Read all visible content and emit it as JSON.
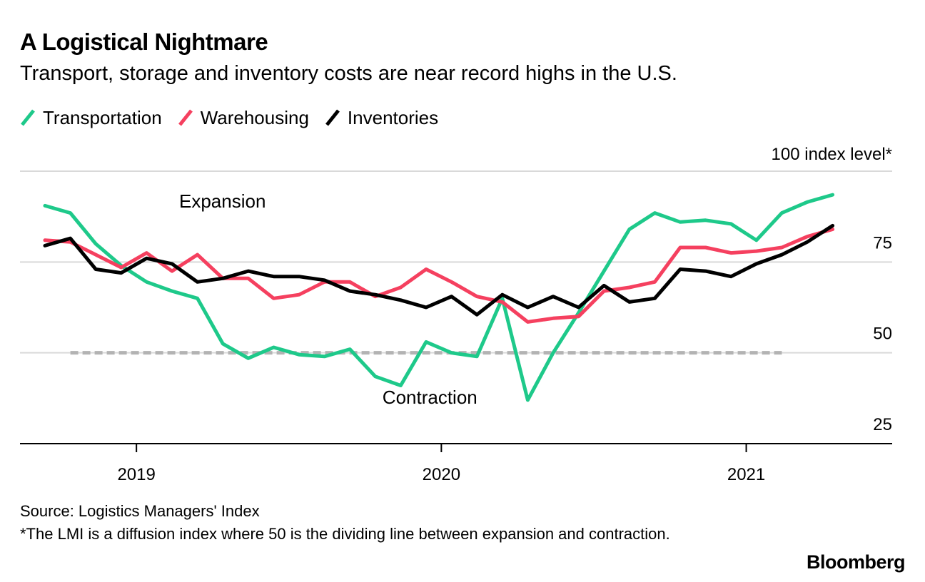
{
  "header": {
    "title": "A Logistical Nightmare",
    "subtitle": "Transport, storage and inventory costs are near record highs in the U.S."
  },
  "footer": {
    "source": "Source: Logistics Managers' Index",
    "note": "*The LMI is a diffusion index where 50 is the dividing line between expansion and contraction.",
    "brand": "Bloomberg"
  },
  "chart_data": {
    "type": "line",
    "title": "A Logistical Nightmare",
    "subtitle": "Transport, storage and inventory costs are near record highs in the U.S.",
    "ylabel": "100 index level*",
    "xlabel": "",
    "ylim": [
      25,
      100
    ],
    "yticks": [
      25,
      50,
      75,
      100
    ],
    "ytick_labels": [
      "25",
      "50",
      "75",
      "100 index level*"
    ],
    "xticks": [
      "2019",
      "2020",
      "2021"
    ],
    "x": [
      "2018-09",
      "2018-10",
      "2018-11",
      "2018-12",
      "2019-01",
      "2019-02",
      "2019-03",
      "2019-04",
      "2019-05",
      "2019-06",
      "2019-07",
      "2019-08",
      "2019-09",
      "2019-10",
      "2019-11",
      "2019-12",
      "2020-01",
      "2020-02",
      "2020-03",
      "2020-04",
      "2020-05",
      "2020-06",
      "2020-07",
      "2020-08",
      "2020-09",
      "2020-10",
      "2020-11",
      "2020-12",
      "2021-01",
      "2021-02",
      "2021-03",
      "2021-04"
    ],
    "grid": "horizontal",
    "legend_position": "top-left",
    "reference_line": 50,
    "annotations": [
      {
        "text": "Expansion",
        "x": "2019-02",
        "y": 90
      },
      {
        "text": "Contraction",
        "x": "2019-10",
        "y": 36
      }
    ],
    "series": [
      {
        "name": "Transportation",
        "color": "#1ec98a",
        "values": [
          90.5,
          88.5,
          80,
          74,
          69.5,
          67,
          65,
          52.5,
          48.5,
          51.5,
          49.5,
          49,
          51,
          43.5,
          41,
          53,
          50,
          49,
          65,
          37,
          50,
          61,
          72.5,
          84,
          88.5,
          86,
          86.5,
          85.5,
          81,
          88.5,
          91.5,
          93.5
        ]
      },
      {
        "name": "Warehousing",
        "color": "#f5405f",
        "values": [
          81,
          80.5,
          77,
          73.5,
          77.5,
          72.5,
          77,
          70.5,
          70.5,
          65,
          66,
          69.5,
          69.5,
          65.5,
          68,
          73,
          69.5,
          65.5,
          64,
          58.5,
          59.5,
          60,
          67,
          68,
          69.5,
          79,
          79,
          77.5,
          78,
          79,
          82,
          84
        ]
      },
      {
        "name": "Inventories",
        "color": "#000000",
        "values": [
          79.5,
          81.5,
          73,
          72,
          76,
          74.5,
          69.5,
          70.5,
          72.5,
          71,
          71,
          70,
          67,
          66,
          64.5,
          62.5,
          65.5,
          60.5,
          66,
          62.5,
          65.5,
          62.5,
          68.5,
          64,
          65,
          73,
          72.5,
          71,
          74.5,
          77,
          80.5,
          85
        ]
      }
    ]
  }
}
